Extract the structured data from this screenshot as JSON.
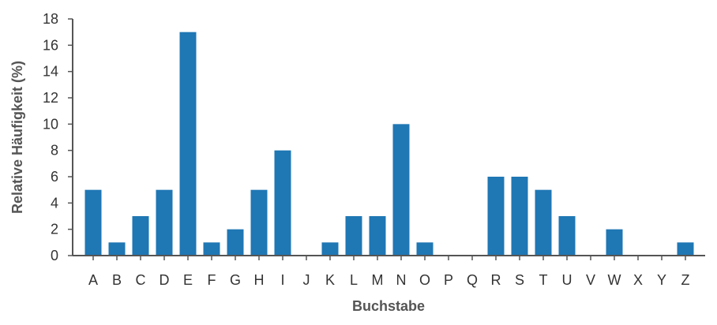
{
  "chart_data": {
    "type": "bar",
    "categories": [
      "A",
      "B",
      "C",
      "D",
      "E",
      "F",
      "G",
      "H",
      "I",
      "J",
      "K",
      "L",
      "M",
      "N",
      "O",
      "P",
      "Q",
      "R",
      "S",
      "T",
      "U",
      "V",
      "W",
      "X",
      "Y",
      "Z"
    ],
    "values": [
      5,
      1,
      3,
      5,
      17,
      1,
      2,
      5,
      8,
      0,
      1,
      3,
      3,
      10,
      1,
      0,
      0,
      6,
      6,
      5,
      3,
      0,
      2,
      0,
      0,
      1
    ],
    "xlabel": "Buchstabe",
    "ylabel": "Relative Häufigkeit (%)",
    "ylim": [
      0,
      18
    ],
    "yticks": [
      0,
      2,
      4,
      6,
      8,
      10,
      12,
      14,
      16,
      18
    ],
    "grid": false,
    "bar_color": "#1f77b4",
    "axis_color": "#555555"
  }
}
